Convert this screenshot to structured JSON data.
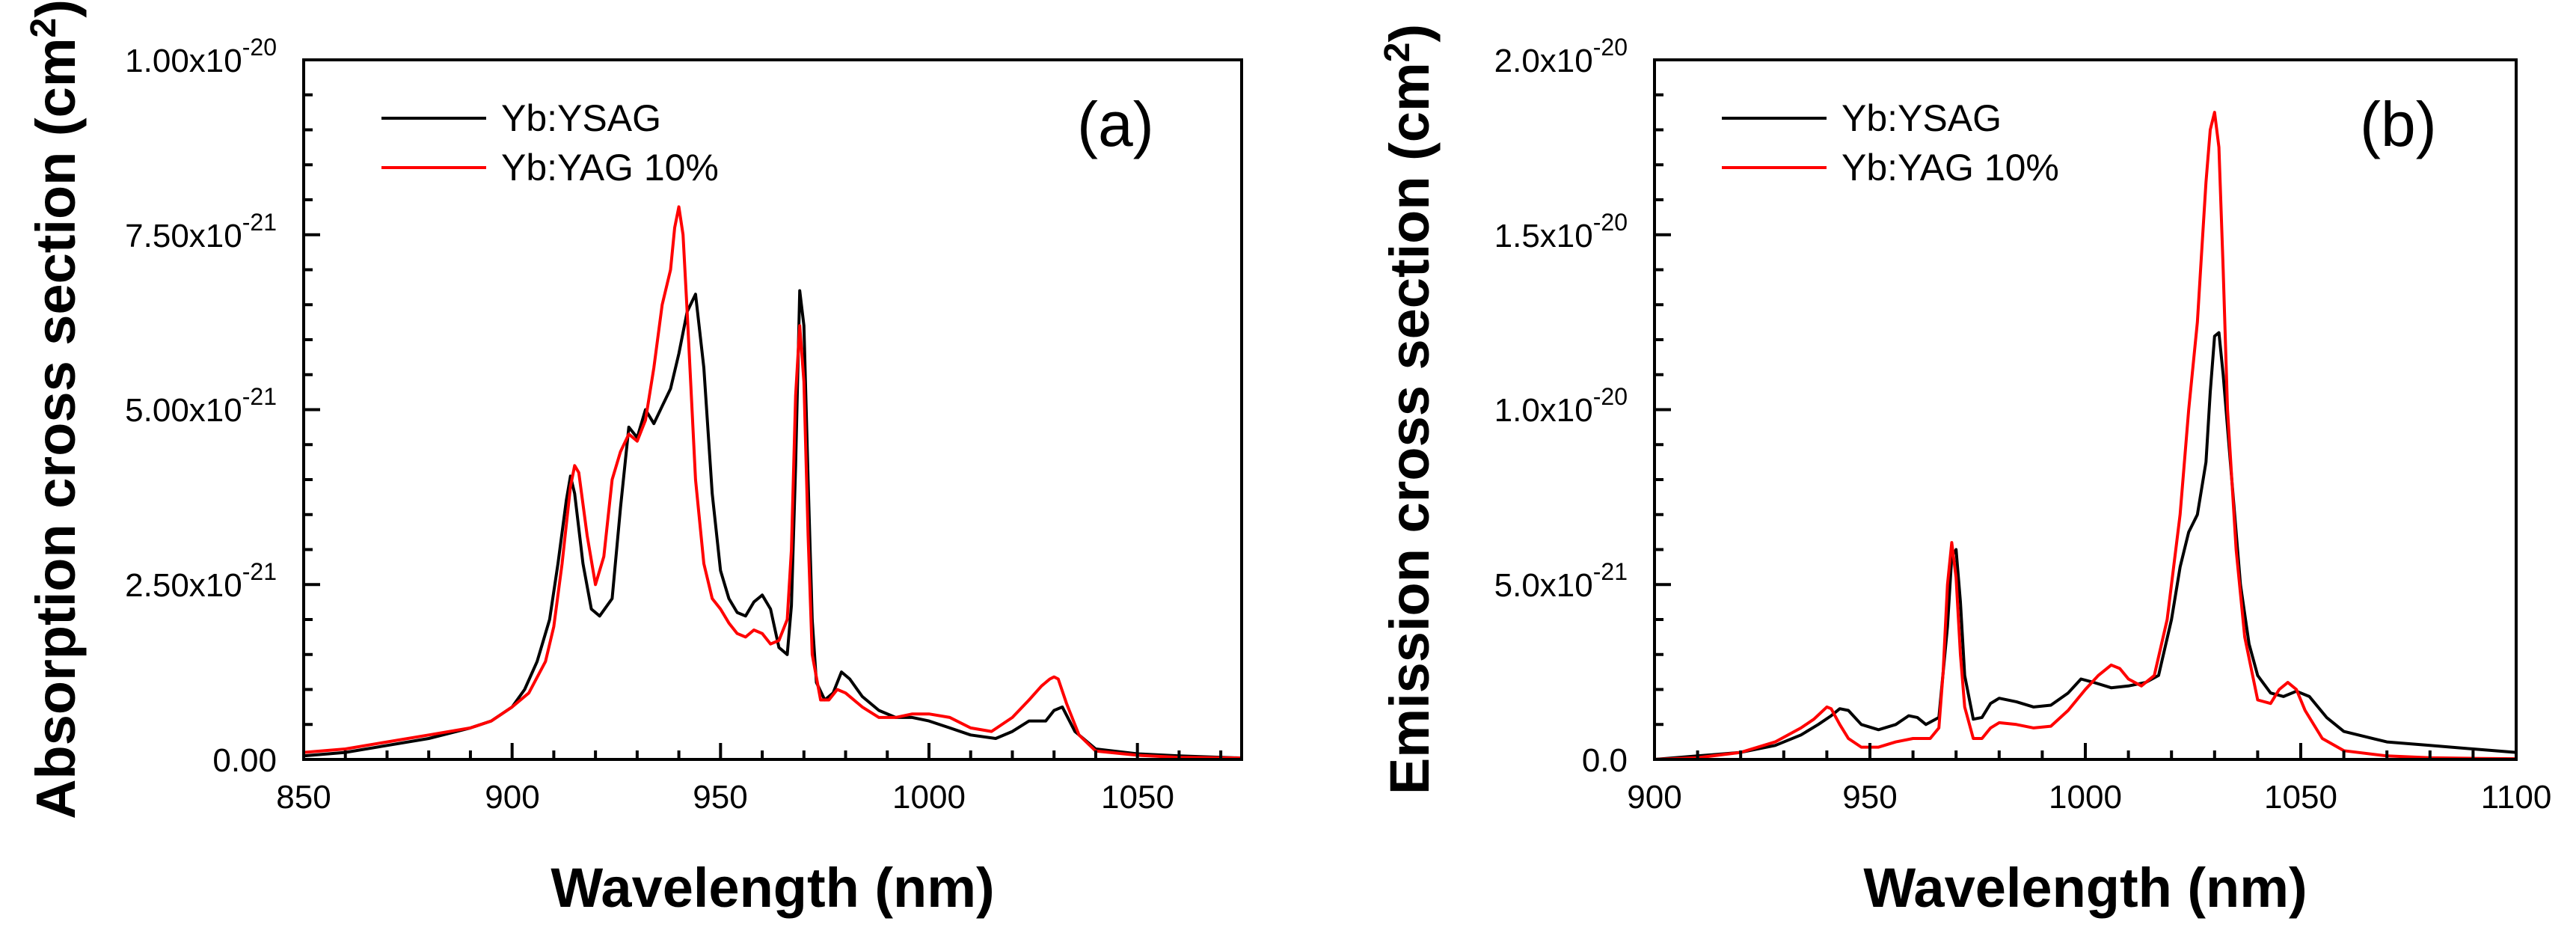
{
  "chart_data": [
    {
      "panel": "(a)",
      "type": "line",
      "xlabel": "Wavelength (nm)",
      "ylabel": "Absorption cross section (cm2)",
      "xlim": [
        850,
        1075
      ],
      "ylim": [
        0,
        1e-20
      ],
      "xticks": [
        850,
        900,
        950,
        1000,
        1050
      ],
      "xtick_labels": [
        "850",
        "900",
        "950",
        "1000",
        "1050"
      ],
      "yticks": [
        0,
        2.5e-21,
        5e-21,
        7.5e-21,
        1e-20
      ],
      "ytick_labels": [
        {
          "mant": "0.00",
          "exp": ""
        },
        {
          "mant": "2.50x10",
          "exp": "-21"
        },
        {
          "mant": "5.00x10",
          "exp": "-21"
        },
        {
          "mant": "7.50x10",
          "exp": "-21"
        },
        {
          "mant": "1.00x10",
          "exp": "-20"
        }
      ],
      "legend_position": "top-left",
      "series": [
        {
          "name": "Yb:YSAG",
          "color": "#000000",
          "x": [
            850,
            860,
            870,
            880,
            890,
            895,
            900,
            903,
            906,
            909,
            911,
            913,
            914,
            915,
            917,
            919,
            921,
            924,
            926,
            928,
            930,
            932,
            934,
            936,
            938,
            940,
            942,
            944,
            946,
            948,
            950,
            952,
            954,
            956,
            958,
            960,
            962,
            964,
            966,
            967,
            968,
            969,
            970,
            971,
            972,
            973,
            975,
            977,
            979,
            981,
            984,
            988,
            992,
            996,
            1000,
            1005,
            1010,
            1016,
            1020,
            1024,
            1026,
            1028,
            1030,
            1032,
            1035,
            1040,
            1050,
            1060,
            1075
          ],
          "values": [
            5e-23,
            1e-22,
            2e-22,
            3e-22,
            4.5e-22,
            5.5e-22,
            7.5e-22,
            1e-21,
            1.4e-21,
            2e-21,
            2.8e-21,
            3.7e-21,
            4.05e-21,
            3.8e-21,
            2.8e-21,
            2.15e-21,
            2.05e-21,
            2.3e-21,
            3.6e-21,
            4.75e-21,
            4.6e-21,
            5e-21,
            4.8e-21,
            5.05e-21,
            5.3e-21,
            5.8e-21,
            6.4e-21,
            6.65e-21,
            5.6e-21,
            3.8e-21,
            2.7e-21,
            2.3e-21,
            2.1e-21,
            2.05e-21,
            2.25e-21,
            2.35e-21,
            2.15e-21,
            1.6e-21,
            1.5e-21,
            2.2e-21,
            4.2e-21,
            6.7e-21,
            6.2e-21,
            4e-21,
            2e-21,
            1.1e-21,
            8.5e-22,
            9.5e-22,
            1.25e-21,
            1.15e-21,
            9e-22,
            7e-22,
            6e-22,
            6e-22,
            5.5e-22,
            4.5e-22,
            3.5e-22,
            3e-22,
            4e-22,
            5.5e-22,
            5.5e-22,
            5.5e-22,
            7e-22,
            7.5e-22,
            4e-22,
            1.5e-22,
            8e-23,
            5e-23,
            2e-23
          ]
        },
        {
          "name": "Yb:YAG 10%",
          "color": "#ff0000",
          "x": [
            850,
            860,
            870,
            880,
            890,
            895,
            900,
            904,
            908,
            910,
            912,
            914,
            915,
            916,
            918,
            920,
            922,
            924,
            926,
            928,
            930,
            932,
            934,
            936,
            938,
            939,
            940,
            941,
            942,
            944,
            946,
            948,
            950,
            952,
            954,
            956,
            958,
            960,
            962,
            964,
            966,
            967,
            968,
            969,
            970,
            971,
            972,
            974,
            976,
            978,
            980,
            984,
            988,
            992,
            996,
            1000,
            1005,
            1010,
            1015,
            1020,
            1024,
            1027,
            1029,
            1030,
            1031,
            1033,
            1036,
            1040,
            1050,
            1060,
            1075
          ],
          "values": [
            1e-22,
            1.5e-22,
            2.5e-22,
            3.5e-22,
            4.5e-22,
            5.5e-22,
            7.5e-22,
            9.5e-22,
            1.4e-21,
            1.9e-21,
            2.8e-21,
            3.9e-21,
            4.2e-21,
            4.1e-21,
            3.2e-21,
            2.5e-21,
            2.9e-21,
            4e-21,
            4.4e-21,
            4.65e-21,
            4.55e-21,
            4.85e-21,
            5.6e-21,
            6.5e-21,
            7e-21,
            7.6e-21,
            7.9e-21,
            7.5e-21,
            6.4e-21,
            4e-21,
            2.8e-21,
            2.3e-21,
            2.15e-21,
            1.95e-21,
            1.8e-21,
            1.75e-21,
            1.85e-21,
            1.8e-21,
            1.65e-21,
            1.7e-21,
            2e-21,
            3e-21,
            5.2e-21,
            6.2e-21,
            5.4e-21,
            3.2e-21,
            1.5e-21,
            8.5e-22,
            8.5e-22,
            1e-21,
            9.5e-22,
            7.5e-22,
            6e-22,
            6e-22,
            6.5e-22,
            6.5e-22,
            6e-22,
            4.5e-22,
            4e-22,
            6e-22,
            8.5e-22,
            1.05e-21,
            1.15e-21,
            1.18e-21,
            1.15e-21,
            8e-22,
            3.5e-22,
            1.2e-22,
            6e-23,
            3e-23,
            2e-23
          ]
        }
      ]
    },
    {
      "panel": "(b)",
      "type": "line",
      "xlabel": "Wavelength (nm)",
      "ylabel": "Emission cross section (cm2)",
      "xlim": [
        900,
        1100
      ],
      "ylim": [
        0,
        2e-20
      ],
      "xticks": [
        900,
        950,
        1000,
        1050,
        1100
      ],
      "xtick_labels": [
        "900",
        "950",
        "1000",
        "1050",
        "1100"
      ],
      "yticks": [
        0,
        5e-21,
        1e-20,
        1.5e-20,
        2e-20
      ],
      "ytick_labels": [
        {
          "mant": "0.0",
          "exp": ""
        },
        {
          "mant": "5.0x10",
          "exp": "-21"
        },
        {
          "mant": "1.0x10",
          "exp": "-20"
        },
        {
          "mant": "1.5x10",
          "exp": "-20"
        },
        {
          "mant": "2.0x10",
          "exp": "-20"
        }
      ],
      "legend_position": "top-left",
      "series": [
        {
          "name": "Yb:YSAG",
          "color": "#000000",
          "x": [
            900,
            910,
            920,
            928,
            934,
            938,
            941,
            943,
            945,
            948,
            952,
            956,
            959,
            961,
            963,
            966,
            968,
            969,
            970,
            971,
            972,
            974,
            976,
            978,
            980,
            984,
            988,
            992,
            996,
            999,
            1002,
            1006,
            1010,
            1014,
            1017,
            1020,
            1022,
            1024,
            1026,
            1028,
            1029,
            1030,
            1031,
            1032,
            1034,
            1036,
            1038,
            1040,
            1043,
            1046,
            1049,
            1052,
            1056,
            1060,
            1070,
            1080,
            1090,
            1100
          ],
          "values": [
            0,
            1e-22,
            2e-22,
            4e-22,
            7e-22,
            1e-21,
            1.25e-21,
            1.45e-21,
            1.4e-21,
            1e-21,
            8.5e-22,
            1e-21,
            1.25e-21,
            1.2e-21,
            1e-21,
            1.2e-21,
            3.8e-21,
            5.8e-21,
            6e-21,
            4.5e-21,
            2.4e-21,
            1.15e-21,
            1.2e-21,
            1.6e-21,
            1.75e-21,
            1.65e-21,
            1.5e-21,
            1.55e-21,
            1.9e-21,
            2.3e-21,
            2.2e-21,
            2.05e-21,
            2.1e-21,
            2.2e-21,
            2.4e-21,
            4e-21,
            5.5e-21,
            6.5e-21,
            7e-21,
            8.5e-21,
            1.05e-20,
            1.21e-20,
            1.22e-20,
            1.1e-20,
            8e-21,
            5e-21,
            3.3e-21,
            2.4e-21,
            1.9e-21,
            1.8e-21,
            1.95e-21,
            1.8e-21,
            1.2e-21,
            8e-22,
            5e-22,
            4e-22,
            3e-22,
            2e-22
          ]
        },
        {
          "name": "Yb:YAG 10%",
          "color": "#ff0000",
          "x": [
            900,
            910,
            920,
            928,
            934,
            937,
            940,
            941,
            943,
            945,
            948,
            952,
            956,
            960,
            964,
            966,
            967,
            968,
            969,
            970,
            971,
            972,
            974,
            976,
            978,
            980,
            984,
            988,
            992,
            996,
            1000,
            1003,
            1006,
            1008,
            1010,
            1013,
            1016,
            1019,
            1022,
            1024,
            1026,
            1027,
            1028,
            1029,
            1030,
            1031,
            1032,
            1033,
            1035,
            1037,
            1040,
            1043,
            1045,
            1047,
            1049,
            1051,
            1055,
            1060,
            1070,
            1080,
            1090,
            1100
          ],
          "values": [
            0,
            5e-23,
            2e-22,
            5e-22,
            9e-22,
            1.15e-21,
            1.5e-21,
            1.45e-21,
            1e-21,
            6e-22,
            3.5e-22,
            3.5e-22,
            5e-22,
            6e-22,
            6e-22,
            9e-22,
            2.5e-21,
            5e-21,
            6.2e-21,
            5.2e-21,
            3e-21,
            1.5e-21,
            6e-22,
            6e-22,
            9e-22,
            1.05e-21,
            1e-21,
            9e-22,
            9.5e-22,
            1.4e-21,
            2e-21,
            2.4e-21,
            2.7e-21,
            2.6e-21,
            2.3e-21,
            2.1e-21,
            2.4e-21,
            4e-21,
            7e-21,
            1e-20,
            1.25e-20,
            1.45e-20,
            1.65e-20,
            1.8e-20,
            1.85e-20,
            1.75e-20,
            1.4e-20,
            1e-20,
            6e-21,
            3.5e-21,
            1.7e-21,
            1.6e-21,
            2e-21,
            2.2e-21,
            2e-21,
            1.4e-21,
            6e-22,
            2.5e-22,
            1e-22,
            5e-23,
            3e-23,
            2e-23
          ]
        }
      ]
    }
  ]
}
